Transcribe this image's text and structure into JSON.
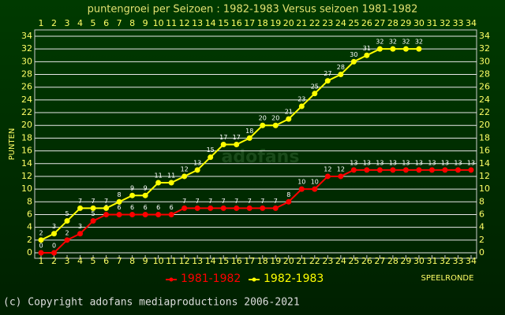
{
  "chart_data": {
    "type": "line",
    "title": "puntengroei per Seizoen : 1982-1983 Versus seizoen 1981-1982",
    "y_label": "PUNTEN",
    "x_label": "SPEELRONDE",
    "watermark": "adofans",
    "footer": "(c) Copyright adofans mediaproductions 2006-2021",
    "x": [
      1,
      2,
      3,
      4,
      5,
      6,
      7,
      8,
      9,
      10,
      11,
      12,
      13,
      14,
      15,
      16,
      17,
      18,
      19,
      20,
      21,
      22,
      23,
      24,
      25,
      26,
      27,
      28,
      29,
      30,
      31,
      32,
      33,
      34
    ],
    "xlim": [
      1,
      34
    ],
    "xticks": [
      1,
      2,
      3,
      4,
      5,
      6,
      7,
      8,
      9,
      10,
      11,
      12,
      13,
      14,
      15,
      16,
      17,
      18,
      19,
      20,
      21,
      22,
      23,
      24,
      25,
      26,
      27,
      28,
      29,
      30,
      31,
      32,
      33,
      34
    ],
    "ylim": [
      0,
      34
    ],
    "yticks": [
      0,
      2,
      4,
      6,
      8,
      10,
      12,
      14,
      16,
      18,
      20,
      22,
      24,
      26,
      28,
      30,
      32,
      34
    ],
    "grid": true,
    "series": [
      {
        "name": "1981-1982",
        "color": "#ff0000",
        "values": [
          0,
          0,
          2,
          3,
          5,
          6,
          6,
          6,
          6,
          6,
          6,
          7,
          7,
          7,
          7,
          7,
          7,
          7,
          7,
          8,
          10,
          10,
          12,
          12,
          13,
          13,
          13,
          13,
          13,
          13,
          13,
          13,
          13,
          13
        ]
      },
      {
        "name": "1982-1983",
        "color": "#ffff00",
        "values": [
          2,
          3,
          5,
          7,
          7,
          7,
          8,
          9,
          9,
          11,
          11,
          12,
          13,
          15,
          17,
          17,
          18,
          20,
          20,
          21,
          23,
          25,
          27,
          28,
          30,
          31,
          32,
          32,
          32,
          32,
          null,
          null,
          null,
          null
        ]
      }
    ]
  }
}
